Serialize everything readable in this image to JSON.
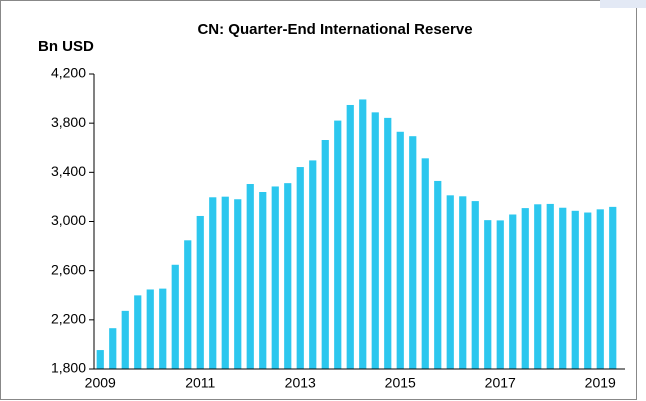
{
  "chart_data": {
    "type": "bar",
    "title": "CN: Quarter-End International Reserve",
    "y_label": "Bn USD",
    "categories": [
      "2009",
      null,
      null,
      null,
      null,
      null,
      null,
      null,
      "2011",
      null,
      null,
      null,
      null,
      null,
      null,
      null,
      "2013",
      null,
      null,
      null,
      null,
      null,
      null,
      null,
      "2015",
      null,
      null,
      null,
      null,
      null,
      null,
      null,
      "2017",
      null,
      null,
      null,
      null,
      null,
      null,
      null,
      "2019",
      null
    ],
    "values": [
      1954,
      2132,
      2273,
      2399,
      2447,
      2454,
      2648,
      2847,
      3045,
      3197,
      3202,
      3181,
      3305,
      3240,
      3285,
      3312,
      3443,
      3497,
      3663,
      3821,
      3948,
      3993,
      3888,
      3843,
      3730,
      3694,
      3514,
      3330,
      3213,
      3205,
      3166,
      3011,
      3009,
      3057,
      3109,
      3140,
      3143,
      3112,
      3087,
      3073,
      3099,
      3119
    ],
    "color": "#2cc7ee",
    "ylim": [
      1800,
      4200
    ],
    "yticks": [
      {
        "value": 1800,
        "label": "1,800"
      },
      {
        "value": 2200,
        "label": "2,200"
      },
      {
        "value": 2600,
        "label": "2,600"
      },
      {
        "value": 3000,
        "label": "3,000"
      },
      {
        "value": 3400,
        "label": "3,400"
      },
      {
        "value": 3800,
        "label": "3,800"
      },
      {
        "value": 4200,
        "label": "4,200"
      }
    ],
    "grid": false
  }
}
